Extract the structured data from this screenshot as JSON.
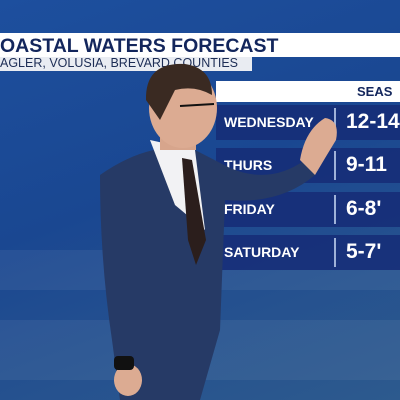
{
  "header": {
    "title": "OASTAL WATERS FORECAST",
    "subtitle": "AGLER, VOLUSIA, BREVARD COUNTIES"
  },
  "table": {
    "column_header": "SEAS",
    "rows": [
      [
        "WEDNESDAY",
        "12-14"
      ],
      [
        "THURS",
        "9-11"
      ],
      [
        "FRIDAY",
        "6-8'"
      ],
      [
        "SATURDAY",
        "5-7'"
      ]
    ]
  }
}
